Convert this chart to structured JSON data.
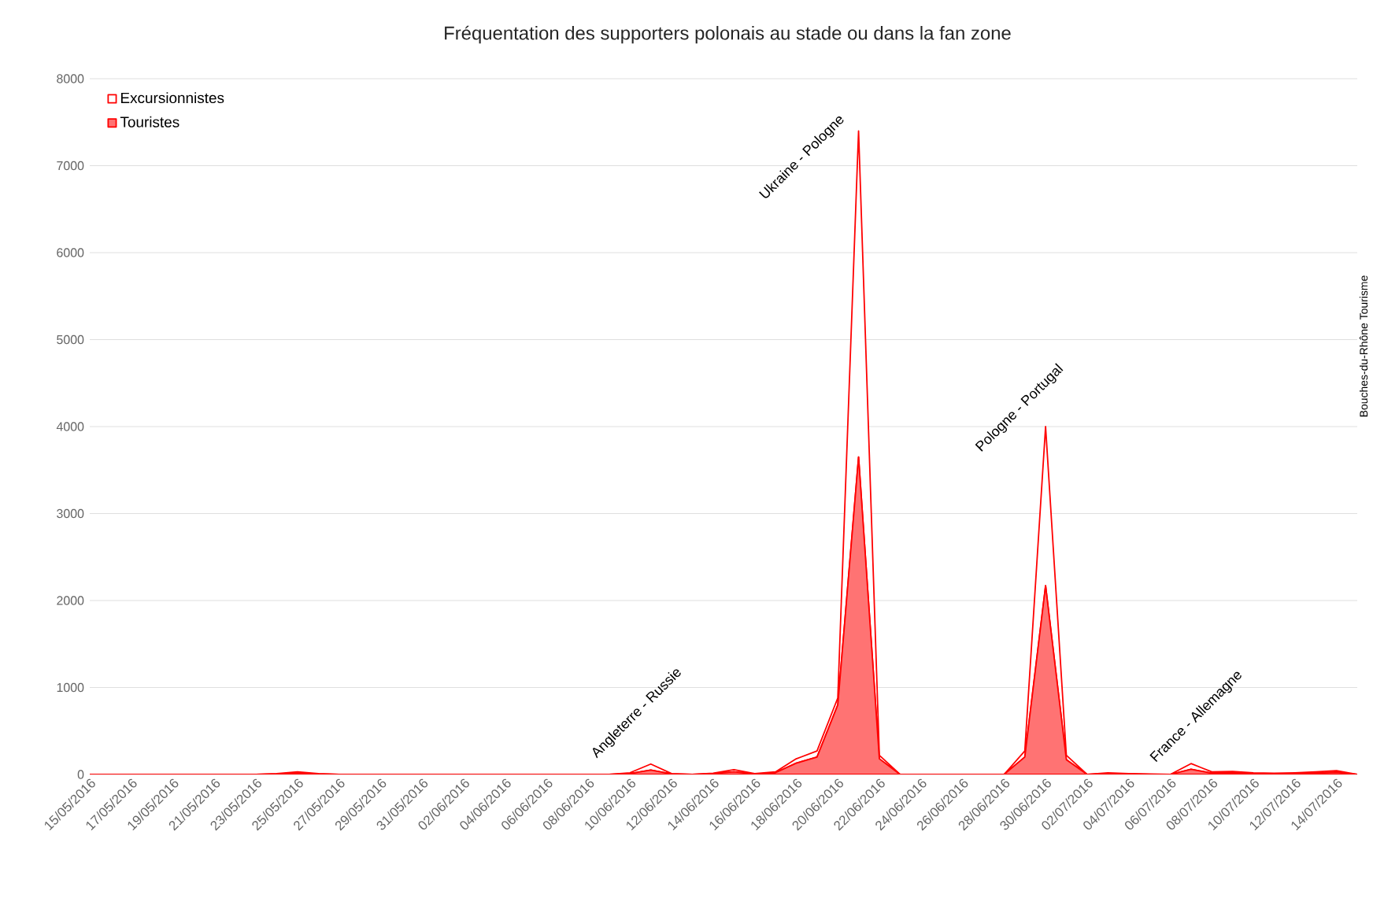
{
  "chart_data": {
    "type": "area",
    "stacked": true,
    "grid": "y",
    "legend": "top left",
    "title": "Fréquentation des supporters polonais au stade ou dans la fan zone",
    "categories": [
      "15/05/2016",
      null,
      "17/05/2016",
      null,
      "19/05/2016",
      null,
      "21/05/2016",
      null,
      "23/05/2016",
      null,
      "25/05/2016",
      null,
      "27/05/2016",
      null,
      "29/05/2016",
      null,
      "31/05/2016",
      null,
      "02/06/2016",
      null,
      "04/06/2016",
      null,
      "06/06/2016",
      null,
      "08/06/2016",
      null,
      "10/06/2016",
      null,
      "12/06/2016",
      null,
      "14/06/2016",
      null,
      "16/06/2016",
      null,
      "18/06/2016",
      null,
      "20/06/2016",
      null,
      "22/06/2016",
      null,
      "24/06/2016",
      null,
      "26/06/2016",
      null,
      "28/06/2016",
      null,
      "30/06/2016",
      null,
      "02/07/2016",
      null,
      "04/07/2016",
      null,
      "06/07/2016",
      null,
      "08/07/2016",
      null,
      "10/07/2016",
      null,
      "12/07/2016",
      null,
      "14/07/2016",
      null
    ],
    "series": [
      {
        "name": "Touristes",
        "color": "#ff0000",
        "values": [
          0,
          0,
          0,
          0,
          0,
          0,
          0,
          0,
          0,
          5,
          20,
          5,
          0,
          0,
          0,
          0,
          0,
          0,
          0,
          0,
          0,
          0,
          0,
          0,
          0,
          0,
          10,
          50,
          5,
          0,
          10,
          30,
          5,
          20,
          130,
          200,
          800,
          3650,
          180,
          0,
          0,
          0,
          0,
          0,
          0,
          200,
          2170,
          170,
          0,
          10,
          5,
          0,
          0,
          60,
          15,
          20,
          10,
          5,
          10,
          15,
          25,
          0
        ]
      },
      {
        "name": "Excursionnistes",
        "color": "#ff0000",
        "values": [
          0,
          0,
          0,
          0,
          0,
          0,
          0,
          0,
          0,
          5,
          10,
          5,
          0,
          0,
          0,
          0,
          0,
          0,
          0,
          0,
          0,
          0,
          0,
          0,
          0,
          0,
          10,
          70,
          5,
          0,
          5,
          25,
          5,
          10,
          50,
          70,
          80,
          3750,
          40,
          0,
          0,
          0,
          0,
          0,
          0,
          70,
          1830,
          50,
          0,
          10,
          5,
          5,
          0,
          65,
          15,
          15,
          10,
          10,
          10,
          15,
          20,
          0
        ]
      }
    ],
    "ylim": [
      0,
      8000
    ],
    "yticks": [
      0,
      1000,
      2000,
      3000,
      4000,
      5000,
      6000,
      7000,
      8000
    ],
    "annotations": [
      "Angleterre - Russie",
      "Ukraine - Pologne",
      "Pologne - Portugal",
      "France - Allemagne",
      "Bouches-du-Rhône Tourisme"
    ]
  }
}
